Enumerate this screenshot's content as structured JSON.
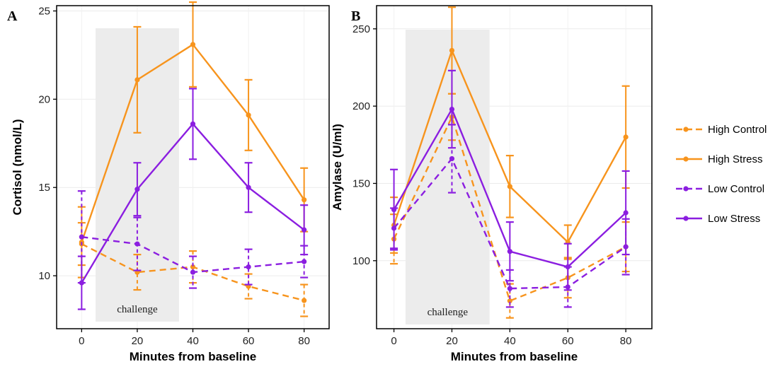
{
  "colors": {
    "high": "#f7941d",
    "low": "#8b1ee0",
    "shade": "#ececec"
  },
  "chart_data": [
    {
      "panel": "A",
      "type": "line",
      "xlabel": "Minutes from baseline",
      "ylabel": "Cortisol (nmol/L)",
      "x": [
        0,
        20,
        40,
        60,
        80
      ],
      "xticks": [
        "0",
        "20",
        "40",
        "60",
        "80"
      ],
      "yticks": [
        10,
        15,
        20,
        25
      ],
      "xlim": [
        -9,
        89
      ],
      "ylim": [
        7.0,
        25.3
      ],
      "shade": {
        "x0": 5,
        "x1": 35,
        "label": "challenge"
      },
      "series": [
        {
          "name": "High Control",
          "group": "high",
          "dash": true,
          "values": [
            11.8,
            10.2,
            10.5,
            9.4,
            8.6
          ],
          "err": [
            1.2,
            1.0,
            0.9,
            0.7,
            0.9
          ]
        },
        {
          "name": "High Stress",
          "group": "high",
          "dash": false,
          "values": [
            11.9,
            21.1,
            23.1,
            19.1,
            14.3
          ],
          "err": [
            2.0,
            3.0,
            2.4,
            2.0,
            1.8
          ]
        },
        {
          "name": "Low Control",
          "group": "low",
          "dash": true,
          "values": [
            12.2,
            11.8,
            10.2,
            10.5,
            10.8
          ],
          "err": [
            2.6,
            1.5,
            0.9,
            1.0,
            0.9
          ]
        },
        {
          "name": "Low Stress",
          "group": "low",
          "dash": false,
          "values": [
            9.6,
            14.9,
            18.6,
            15.0,
            12.6
          ],
          "err": [
            1.5,
            1.5,
            2.0,
            1.4,
            1.4
          ]
        }
      ]
    },
    {
      "panel": "B",
      "type": "line",
      "xlabel": "Minutes from baseline",
      "ylabel": "Amylase (U/ml)",
      "x": [
        0,
        20,
        40,
        60,
        80
      ],
      "xticks": [
        "0",
        "20",
        "40",
        "60",
        "80"
      ],
      "yticks": [
        100,
        150,
        200,
        250
      ],
      "xlim": [
        -6,
        89
      ],
      "ylim": [
        56,
        265
      ],
      "shade": {
        "x0": 4,
        "x1": 33,
        "label": "challenge"
      },
      "series": [
        {
          "name": "High Control",
          "group": "high",
          "dash": true,
          "values": [
            114,
            193,
            74,
            89,
            109
          ],
          "err": [
            16,
            15,
            11,
            13,
            16
          ]
        },
        {
          "name": "High Stress",
          "group": "high",
          "dash": false,
          "values": [
            123,
            236,
            148,
            112,
            180
          ],
          "err": [
            18,
            28,
            20,
            11,
            33
          ]
        },
        {
          "name": "Low Control",
          "group": "low",
          "dash": true,
          "values": [
            121,
            166,
            82,
            83,
            109
          ],
          "err": [
            13,
            22,
            12,
            13,
            18
          ]
        },
        {
          "name": "Low Stress",
          "group": "low",
          "dash": false,
          "values": [
            133,
            198,
            106,
            96,
            131
          ],
          "err": [
            26,
            25,
            19,
            15,
            27
          ]
        }
      ]
    }
  ],
  "legend": [
    {
      "name": "High Control",
      "group": "high",
      "dash": true
    },
    {
      "name": "High Stress",
      "group": "high",
      "dash": false
    },
    {
      "name": "Low Control",
      "group": "low",
      "dash": true
    },
    {
      "name": "Low Stress",
      "group": "low",
      "dash": false
    }
  ]
}
